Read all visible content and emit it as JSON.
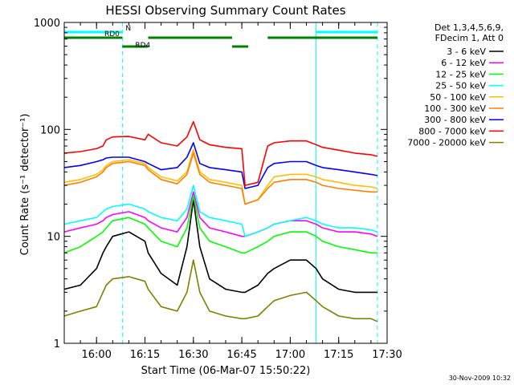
{
  "chart_data": {
    "type": "line",
    "title": "HESSI Observing Summary Count Rates",
    "xlabel": "Start Time (06-Mar-07 15:50:22)",
    "ylabel": "Count Rate (s⁻¹ detector⁻¹)",
    "xlim": [
      "15:50",
      "17:30"
    ],
    "ylim": [
      1,
      1000
    ],
    "y_scale": "log",
    "x_ticks": [
      "16:00",
      "16:15",
      "16:30",
      "16:45",
      "17:00",
      "17:15",
      "17:30"
    ],
    "y_ticks": [
      "1",
      "10",
      "100",
      "1000"
    ],
    "legend_placement": "right",
    "legend_header": [
      "Det 1,3,4,5,6,9,",
      "FDecim 1, Att 0"
    ],
    "timestamp": "30-Nov-2009 10:32",
    "x": [
      "15:50",
      "15:55",
      "16:00",
      "16:02",
      "16:03",
      "16:05",
      "16:10",
      "16:15",
      "16:16",
      "16:20",
      "16:25",
      "16:28",
      "16:30",
      "16:32",
      "16:35",
      "16:40",
      "16:45",
      "16:46",
      "16:50",
      "16:53",
      "16:55",
      "17:00",
      "17:05",
      "17:08",
      "17:10",
      "17:15",
      "17:20",
      "17:25",
      "17:27"
    ],
    "series": [
      {
        "name": "3 - 6 keV",
        "color": "#000000",
        "values": [
          3.2,
          3.5,
          5,
          7,
          8,
          10,
          11,
          9,
          7,
          4.5,
          3.5,
          8,
          22,
          8,
          4,
          3.2,
          3,
          3,
          3.5,
          4.5,
          5,
          6,
          6,
          5,
          4,
          3.2,
          3,
          3,
          3
        ]
      },
      {
        "name": "6 - 12 keV",
        "color": "#ff00ff",
        "values": [
          11,
          12,
          13,
          14,
          15,
          16,
          17,
          15,
          14,
          12,
          11,
          15,
          26,
          15,
          12,
          11,
          10,
          10,
          11,
          12,
          13,
          14,
          14,
          13,
          12,
          11,
          11,
          10.5,
          10
        ]
      },
      {
        "name": "12 - 25 keV",
        "color": "#00ff00",
        "values": [
          7,
          8,
          10,
          11,
          12,
          14,
          15,
          13,
          12,
          9,
          8,
          12,
          24,
          12,
          9,
          8,
          7,
          7,
          8,
          9,
          10,
          11,
          11,
          10,
          9,
          8,
          7.5,
          7,
          7
        ]
      },
      {
        "name": "25 - 50 keV",
        "color": "#00ffff",
        "values": [
          13,
          14,
          15,
          17,
          18,
          19,
          20,
          18,
          17,
          15,
          14,
          18,
          30,
          17,
          15,
          14,
          13,
          10,
          11,
          12,
          13,
          14,
          15,
          14,
          13,
          12,
          12,
          11.5,
          11
        ]
      },
      {
        "name": "50 - 100 keV",
        "color": "#ffbf00",
        "values": [
          32,
          34,
          38,
          42,
          46,
          50,
          52,
          48,
          44,
          36,
          33,
          40,
          65,
          40,
          34,
          32,
          30,
          20,
          22,
          30,
          36,
          38,
          38,
          36,
          34,
          32,
          30,
          29,
          28
        ]
      },
      {
        "name": "100 - 300 keV",
        "color": "#ff8000",
        "values": [
          30,
          32,
          36,
          40,
          44,
          48,
          50,
          46,
          42,
          34,
          31,
          38,
          60,
          38,
          32,
          30,
          28,
          20,
          22,
          28,
          32,
          34,
          34,
          32,
          30,
          28,
          27,
          26,
          26
        ]
      },
      {
        "name": "300 - 800 keV",
        "color": "#0000ff",
        "values": [
          44,
          46,
          50,
          52,
          54,
          55,
          55,
          50,
          48,
          42,
          44,
          55,
          75,
          48,
          44,
          42,
          40,
          28,
          30,
          44,
          48,
          50,
          50,
          46,
          44,
          42,
          40,
          38,
          37
        ]
      },
      {
        "name": "800 - 7000 keV",
        "color": "#ff0000",
        "values": [
          60,
          62,
          66,
          70,
          80,
          85,
          86,
          80,
          90,
          75,
          70,
          85,
          118,
          80,
          72,
          68,
          66,
          30,
          32,
          70,
          75,
          78,
          78,
          72,
          68,
          64,
          60,
          58,
          56
        ]
      },
      {
        "name": "7000 - 20000 keV",
        "color": "#808000",
        "values": [
          1.8,
          2,
          2.2,
          3,
          3.5,
          4,
          4.2,
          3.8,
          3.2,
          2.2,
          2,
          3,
          6,
          3,
          2,
          1.8,
          1.7,
          1.7,
          1.8,
          2.2,
          2.5,
          2.8,
          3,
          2.5,
          2.2,
          1.8,
          1.7,
          1.7,
          1.6
        ]
      }
    ],
    "annotations": [
      {
        "label": "N",
        "color": "#00ffff",
        "segments": [
          [
            "15:50",
            "16:08"
          ],
          [
            "17:08",
            "17:27"
          ]
        ]
      },
      {
        "label": "RD0",
        "color": "#008000",
        "segments": [
          [
            "15:50",
            "16:08"
          ],
          [
            "16:16",
            "16:42"
          ],
          [
            "16:53",
            "17:27"
          ]
        ]
      },
      {
        "label": "RD4",
        "color": "#008000",
        "segments": [
          [
            "16:08",
            "16:16"
          ],
          [
            "16:42",
            "16:47"
          ]
        ]
      }
    ],
    "solid_vlines": [
      "15:50",
      "17:08"
    ],
    "dashed_vlines": [
      "16:08",
      "17:27"
    ]
  }
}
